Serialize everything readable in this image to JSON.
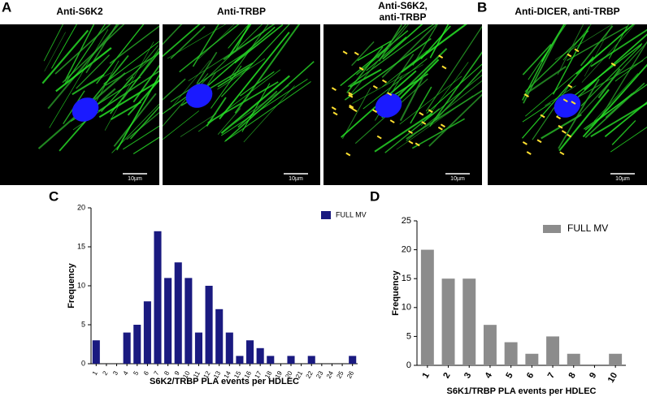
{
  "panels": [
    "A",
    "B",
    "C",
    "D"
  ],
  "images": [
    {
      "title": [
        "Anti-S6K2"
      ],
      "scale": "10µm"
    },
    {
      "title": [
        "Anti-TRBP"
      ],
      "scale": "10µm"
    },
    {
      "title": [
        "Anti-S6K2,",
        "anti-TRBP"
      ],
      "scale": "10µm"
    },
    {
      "title": [
        "Anti-DICER, anti-TRBP"
      ],
      "scale": "10µm"
    }
  ],
  "chart_data": [
    {
      "type": "bar",
      "xlabel": "S6K2/TRBP PLA events per HDLEC",
      "ylabel": "Frequency",
      "categories": [
        "1",
        "2",
        "3",
        "4",
        "5",
        "6",
        "7",
        "8",
        "9",
        "10",
        "11",
        "12",
        "13",
        "14",
        "15",
        "16",
        "17",
        "18",
        "19",
        "20",
        "21",
        "22",
        "23",
        "24",
        "25",
        "26"
      ],
      "series": [
        {
          "name": "FULL MV",
          "color": "#1a1a80",
          "values": [
            3,
            0,
            0,
            4,
            5,
            8,
            17,
            11,
            13,
            11,
            4,
            10,
            7,
            4,
            1,
            3,
            2,
            1,
            0,
            1,
            0,
            1,
            0,
            0,
            0,
            1
          ]
        }
      ],
      "ylim": [
        0,
        20
      ],
      "yticks": [
        0,
        5,
        10,
        15,
        20
      ]
    },
    {
      "type": "bar",
      "xlabel": "S6K1/TRBP PLA events per HDLEC",
      "ylabel": "Frequency",
      "categories": [
        "1",
        "2",
        "3",
        "4",
        "5",
        "6",
        "7",
        "8",
        "9",
        "10"
      ],
      "series": [
        {
          "name": "FULL MV",
          "color": "#8c8c8c",
          "values": [
            20,
            15,
            15,
            7,
            4,
            2,
            5,
            2,
            0,
            2
          ]
        }
      ],
      "ylim": [
        0,
        25
      ],
      "yticks": [
        0,
        5,
        10,
        15,
        20,
        25
      ]
    }
  ]
}
